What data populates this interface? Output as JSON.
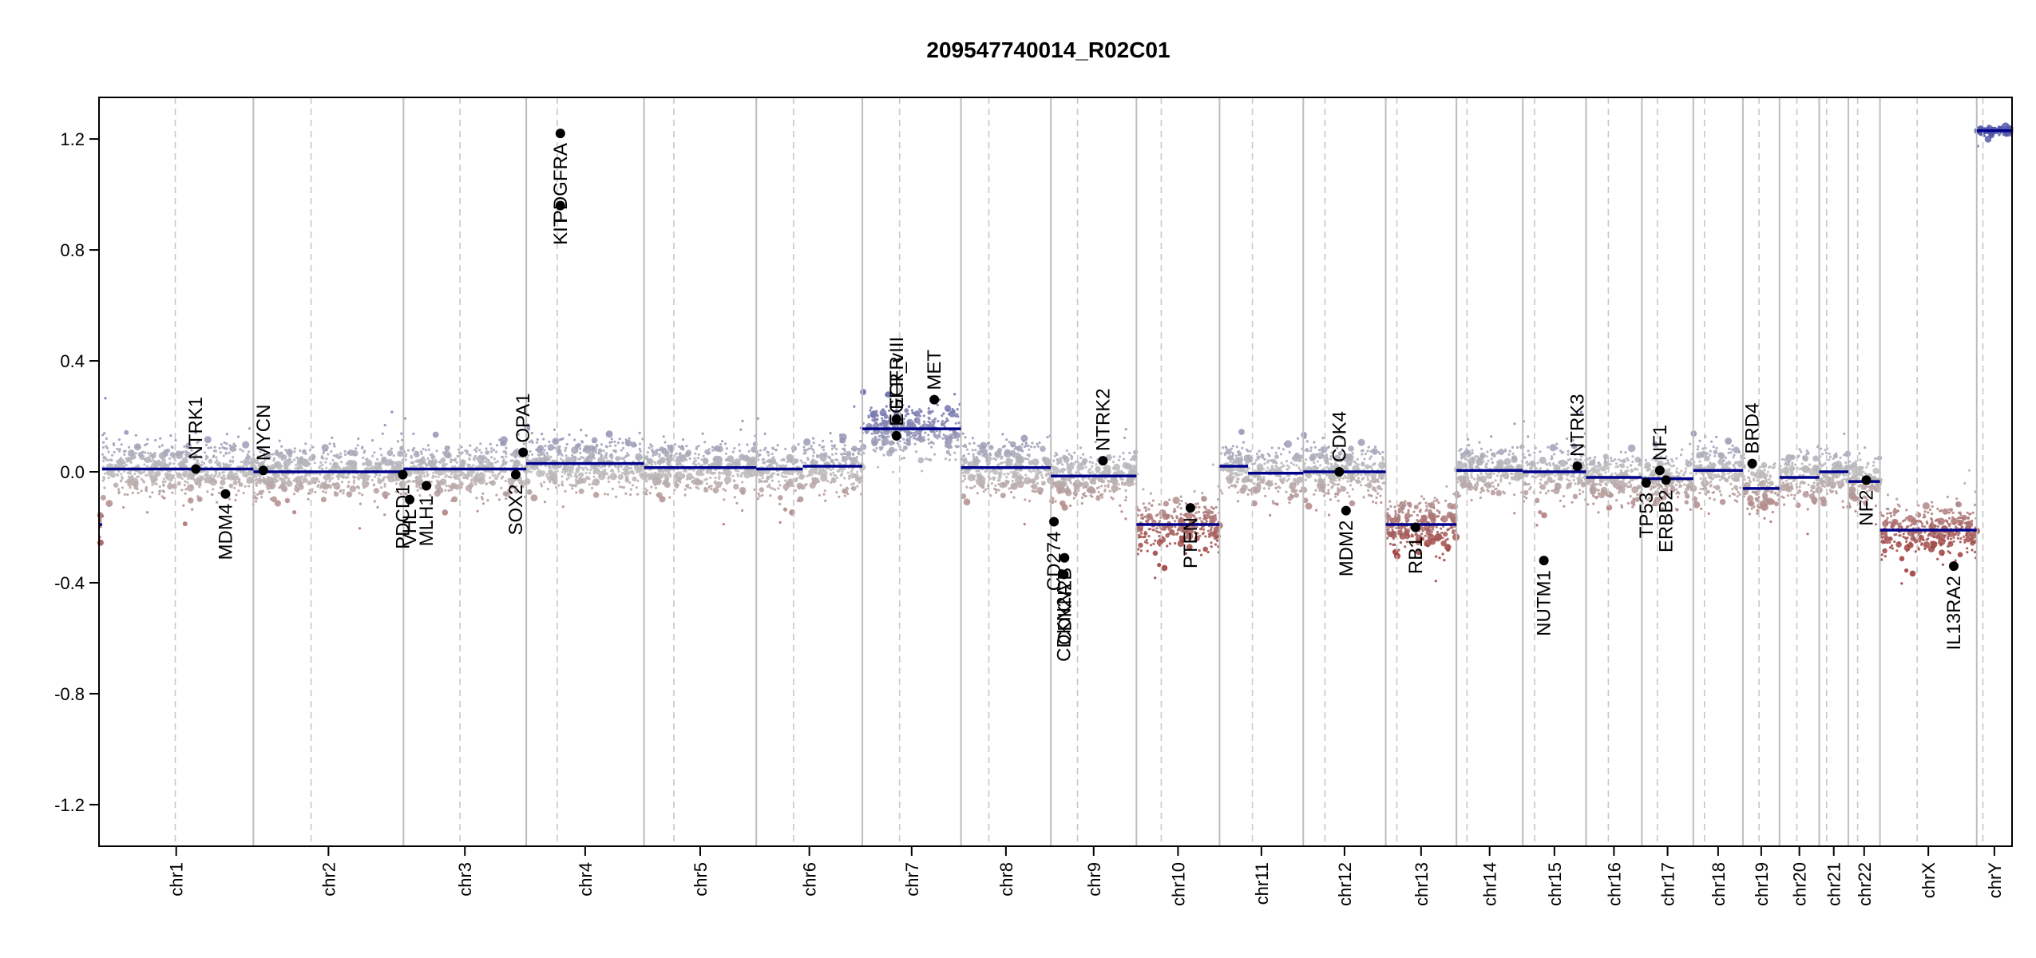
{
  "chart_data": {
    "type": "scatter",
    "title": "209547740014_R02C01",
    "xlabel": "",
    "ylabel": "",
    "ylim": [
      -1.35,
      1.35
    ],
    "y_ticks": [
      1.2,
      0.8,
      0.4,
      0.0,
      -0.4,
      -0.8,
      -1.2
    ],
    "y_tick_labels": [
      "1.2",
      "0.8",
      "0.4",
      "0.0",
      "-0.4",
      "-0.8",
      "-1.2"
    ],
    "grid": false,
    "chromosomes": [
      {
        "name": "chr1",
        "size": 249,
        "centromere": 123,
        "segments": [
          {
            "start": 0,
            "end": 5,
            "value": -0.19
          },
          {
            "start": 5,
            "end": 249,
            "value": 0.01
          }
        ]
      },
      {
        "name": "chr2",
        "size": 242,
        "centromere": 93,
        "segments": [
          {
            "start": 0,
            "end": 242,
            "value": 0.0
          }
        ]
      },
      {
        "name": "chr3",
        "size": 198,
        "centromere": 91,
        "segments": [
          {
            "start": 0,
            "end": 198,
            "value": 0.01
          }
        ]
      },
      {
        "name": "chr4",
        "size": 190,
        "centromere": 50,
        "segments": [
          {
            "start": 0,
            "end": 190,
            "value": 0.03
          }
        ]
      },
      {
        "name": "chr5",
        "size": 181,
        "centromere": 48,
        "segments": [
          {
            "start": 0,
            "end": 181,
            "value": 0.015
          }
        ]
      },
      {
        "name": "chr6",
        "size": 171,
        "centromere": 60,
        "segments": [
          {
            "start": 0,
            "end": 75,
            "value": 0.01
          },
          {
            "start": 75,
            "end": 171,
            "value": 0.02
          }
        ]
      },
      {
        "name": "chr7",
        "size": 159,
        "centromere": 60,
        "segments": [
          {
            "start": 0,
            "end": 159,
            "value": 0.155
          }
        ]
      },
      {
        "name": "chr8",
        "size": 145,
        "centromere": 45,
        "segments": [
          {
            "start": 0,
            "end": 145,
            "value": 0.015
          }
        ]
      },
      {
        "name": "chr9",
        "size": 138,
        "centromere": 43,
        "segments": [
          {
            "start": 0,
            "end": 138,
            "value": -0.015
          }
        ]
      },
      {
        "name": "chr10",
        "size": 134,
        "centromere": 40,
        "segments": [
          {
            "start": 0,
            "end": 134,
            "value": -0.19
          }
        ]
      },
      {
        "name": "chr11",
        "size": 135,
        "centromere": 53,
        "segments": [
          {
            "start": 0,
            "end": 46,
            "value": 0.02
          },
          {
            "start": 46,
            "end": 135,
            "value": -0.005
          }
        ]
      },
      {
        "name": "chr12",
        "size": 133,
        "centromere": 35,
        "segments": [
          {
            "start": 0,
            "end": 133,
            "value": 0.0
          }
        ]
      },
      {
        "name": "chr13",
        "size": 114,
        "centromere": 18,
        "segments": [
          {
            "start": 0,
            "end": 114,
            "value": -0.19
          }
        ]
      },
      {
        "name": "chr14",
        "size": 107,
        "centromere": 17,
        "segments": [
          {
            "start": 0,
            "end": 107,
            "value": 0.005
          }
        ]
      },
      {
        "name": "chr15",
        "size": 102,
        "centromere": 19,
        "segments": [
          {
            "start": 0,
            "end": 102,
            "value": 0.0
          }
        ]
      },
      {
        "name": "chr16",
        "size": 90,
        "centromere": 36,
        "segments": [
          {
            "start": 0,
            "end": 90,
            "value": -0.02
          }
        ]
      },
      {
        "name": "chr17",
        "size": 83,
        "centromere": 25,
        "segments": [
          {
            "start": 0,
            "end": 83,
            "value": -0.025
          }
        ]
      },
      {
        "name": "chr18",
        "size": 80,
        "centromere": 18,
        "segments": [
          {
            "start": 0,
            "end": 80,
            "value": 0.005
          }
        ]
      },
      {
        "name": "chr19",
        "size": 59,
        "centromere": 26,
        "segments": [
          {
            "start": 0,
            "end": 59,
            "value": -0.06
          }
        ]
      },
      {
        "name": "chr20",
        "size": 64,
        "centromere": 28,
        "segments": [
          {
            "start": 0,
            "end": 64,
            "value": -0.02
          }
        ]
      },
      {
        "name": "chr21",
        "size": 47,
        "centromere": 12,
        "segments": [
          {
            "start": 0,
            "end": 47,
            "value": 0.0
          }
        ]
      },
      {
        "name": "chr22",
        "size": 51,
        "centromere": 15,
        "segments": [
          {
            "start": 0,
            "end": 51,
            "value": -0.035
          }
        ]
      },
      {
        "name": "chrX",
        "size": 156,
        "centromere": 60,
        "segments": [
          {
            "start": 0,
            "end": 156,
            "value": -0.21
          }
        ]
      },
      {
        "name": "chrY",
        "size": 57,
        "centromere": 10,
        "segments": [
          {
            "start": 0,
            "end": 57,
            "value": 1.23
          }
        ]
      }
    ],
    "genes": [
      {
        "name": "NTRK1",
        "chr": "chr1",
        "pos": 156,
        "value": 0.01,
        "label_side": "above"
      },
      {
        "name": "MDM4",
        "chr": "chr1",
        "pos": 204,
        "value": -0.08,
        "label_side": "below"
      },
      {
        "name": "MYCN",
        "chr": "chr2",
        "pos": 16,
        "value": 0.005,
        "label_side": "above"
      },
      {
        "name": "PDCD1",
        "chr": "chr2",
        "pos": 241,
        "value": -0.01,
        "label_side": "below"
      },
      {
        "name": "VHL",
        "chr": "chr3",
        "pos": 10,
        "value": -0.1,
        "label_side": "below"
      },
      {
        "name": "MLH1",
        "chr": "chr3",
        "pos": 37,
        "value": -0.05,
        "label_side": "below"
      },
      {
        "name": "SOX2",
        "chr": "chr3",
        "pos": 181,
        "value": -0.01,
        "label_side": "below"
      },
      {
        "name": "OPA1",
        "chr": "chr3",
        "pos": 193,
        "value": 0.07,
        "label_side": "above"
      },
      {
        "name": "KIT",
        "chr": "chr4",
        "pos": 55,
        "value": 0.96,
        "label_side": "below"
      },
      {
        "name": "PDGFRA",
        "chr": "chr4",
        "pos": 55,
        "value": 1.22,
        "label_side": "below"
      },
      {
        "name": "EGFR",
        "chr": "chr7",
        "pos": 55,
        "value": 0.19,
        "label_side": "above"
      },
      {
        "name": "EGFR_vIII",
        "chr": "chr7",
        "pos": 55,
        "value": 0.13,
        "label_side": "above"
      },
      {
        "name": "MET",
        "chr": "chr7",
        "pos": 116,
        "value": 0.26,
        "label_side": "above"
      },
      {
        "name": "CD274",
        "chr": "chr9",
        "pos": 5,
        "value": -0.18,
        "label_side": "below"
      },
      {
        "name": "CDKN2A",
        "chr": "chr9",
        "pos": 21,
        "value": -0.37,
        "label_side": "below"
      },
      {
        "name": "CDKN2B",
        "chr": "chr9",
        "pos": 22,
        "value": -0.31,
        "label_side": "below"
      },
      {
        "name": "NTRK2",
        "chr": "chr9",
        "pos": 84,
        "value": 0.04,
        "label_side": "above"
      },
      {
        "name": "PTEN",
        "chr": "chr10",
        "pos": 87,
        "value": -0.13,
        "label_side": "below"
      },
      {
        "name": "CDK4",
        "chr": "chr12",
        "pos": 58,
        "value": 0.0,
        "label_side": "above"
      },
      {
        "name": "MDM2",
        "chr": "chr12",
        "pos": 69,
        "value": -0.14,
        "label_side": "below"
      },
      {
        "name": "RB1",
        "chr": "chr13",
        "pos": 48,
        "value": -0.2,
        "label_side": "below"
      },
      {
        "name": "NUTM1",
        "chr": "chr15",
        "pos": 34,
        "value": -0.32,
        "label_side": "below"
      },
      {
        "name": "NTRK3",
        "chr": "chr15",
        "pos": 88,
        "value": 0.02,
        "label_side": "above"
      },
      {
        "name": "TP53",
        "chr": "chr17",
        "pos": 7,
        "value": -0.04,
        "label_side": "below"
      },
      {
        "name": "NF1",
        "chr": "chr17",
        "pos": 29,
        "value": 0.005,
        "label_side": "above"
      },
      {
        "name": "ERBB2",
        "chr": "chr17",
        "pos": 39,
        "value": -0.03,
        "label_side": "below"
      },
      {
        "name": "BRD4",
        "chr": "chr19",
        "pos": 15,
        "value": 0.03,
        "label_side": "above"
      },
      {
        "name": "NF2",
        "chr": "chr22",
        "pos": 29,
        "value": -0.03,
        "label_side": "below"
      },
      {
        "name": "IL13RA2",
        "chr": "chrX",
        "pos": 119,
        "value": -0.34,
        "label_side": "below"
      }
    ],
    "colors": {
      "gain": "#5558a8",
      "neutral": "#bdbdbd",
      "loss": "#9b3330",
      "segment": "#00008b",
      "gene_point": "#000000",
      "chr_boundary": "#bdbdbd",
      "centromere": "#c8c8c8"
    }
  }
}
